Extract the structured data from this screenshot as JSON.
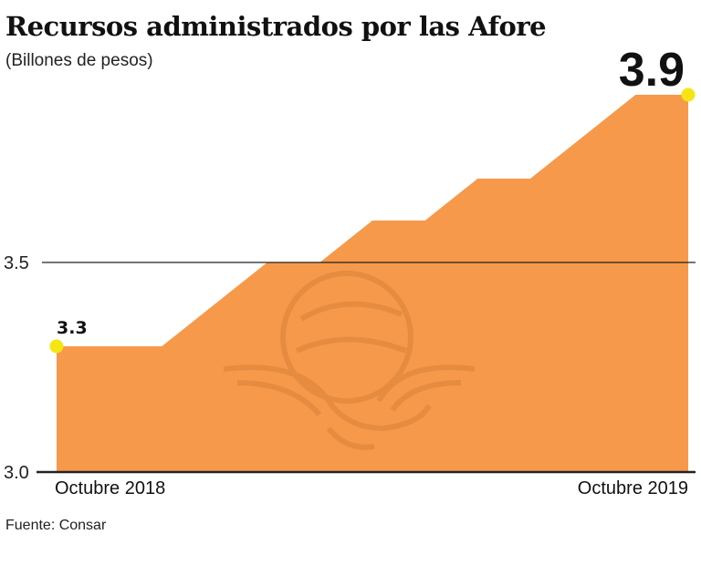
{
  "header": {
    "title": "Recursos administrados por las Afore",
    "subtitle": "(Billones de pesos)"
  },
  "footer": {
    "source": "Fuente: Consar"
  },
  "colors": {
    "area": "#F7994A",
    "marker": "#F5E513",
    "axis": "#222222"
  },
  "watermark": {
    "icon": "eagle-seal-icon"
  },
  "chart_data": {
    "type": "area",
    "title": "Recursos administrados por las Afore",
    "subtitle": "(Billones de pesos)",
    "ylim": [
      3.0,
      3.9
    ],
    "yticks": [
      {
        "value": 3.0,
        "label": "3.0"
      },
      {
        "value": 3.5,
        "label": "3.5"
      }
    ],
    "x_labels": [
      {
        "index": 0,
        "label": "Octubre 2018"
      },
      {
        "index": 12,
        "label": "Octubre 2019"
      }
    ],
    "values": [
      3.3,
      3.3,
      3.3,
      3.4,
      3.5,
      3.5,
      3.6,
      3.6,
      3.7,
      3.7,
      3.8,
      3.9,
      3.9
    ],
    "data_labels": [
      {
        "index": 0,
        "label": "3.3"
      },
      {
        "index": 12,
        "label": "3.9"
      }
    ],
    "grid": "horizontal lines at ticks"
  }
}
